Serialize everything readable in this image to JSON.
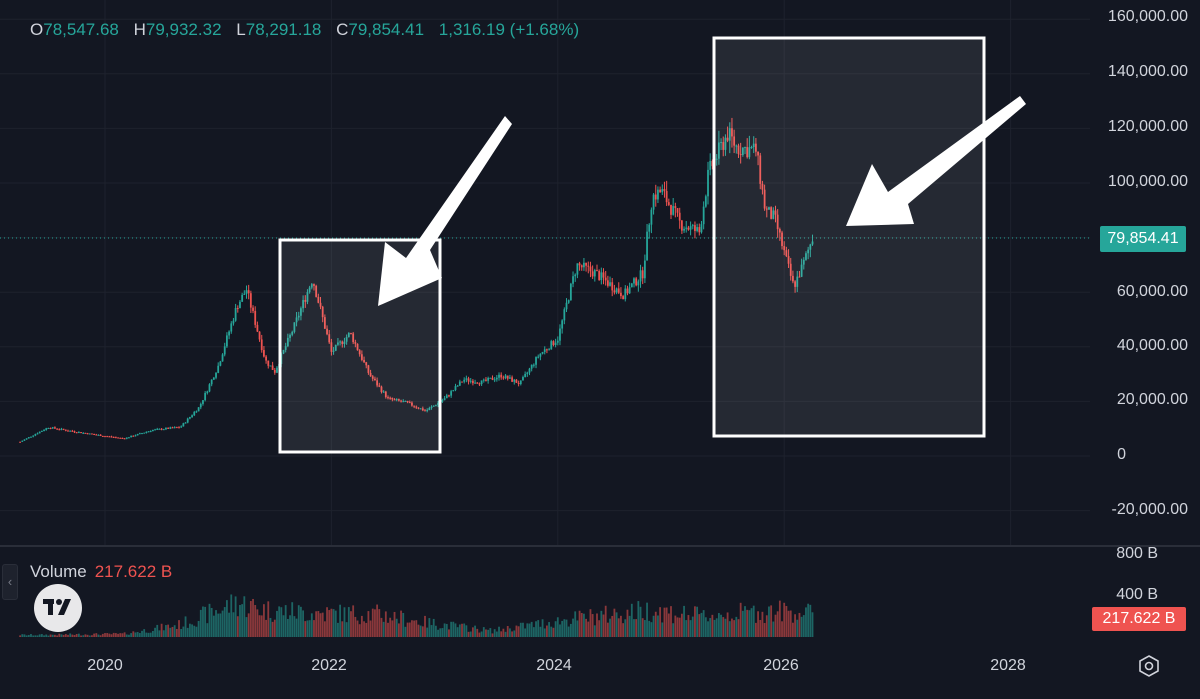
{
  "ohlc": {
    "o_key": "O",
    "o": "78,547.68",
    "h_key": "H",
    "h": "79,932.32",
    "l_key": "L",
    "l": "78,291.18",
    "c_key": "C",
    "c": "79,854.41",
    "change": "1,316.19 (+1.68%)"
  },
  "volume": {
    "label": "Volume",
    "value": "217.622 B"
  },
  "price_axis_labels": [
    "160,000.00",
    "140,000.00",
    "120,000.00",
    "100,000.00",
    "60,000.00",
    "40,000.00",
    "20,000.00",
    "0",
    "-20,000.00"
  ],
  "volume_axis_labels": [
    "800 B",
    "400 B"
  ],
  "x_axis_labels": [
    "2020",
    "2022",
    "2024",
    "2026",
    "2028"
  ],
  "last_price_tag": "79,854.41",
  "last_volume_tag": "217.622 B",
  "icons": {
    "collapse": "chevron-left-icon",
    "logo": "tradingview-logo",
    "settings": "settings-icon"
  },
  "colors": {
    "background": "#131722",
    "up": "#26a69a",
    "down": "#ef5350",
    "grid": "#1e222d",
    "text": "#d1d4dc"
  },
  "chart_data": {
    "type": "candlestick",
    "y_range": [
      -20000,
      160000
    ],
    "volume_range_billions": [
      0,
      800
    ],
    "x_range": [
      "2019-04",
      "2028-06"
    ],
    "last_price": 79854.41,
    "series": [
      {
        "name": "Price",
        "points": [
          [
            "2019-04",
            5200
          ],
          [
            "2019-07",
            10500
          ],
          [
            "2019-10",
            8800
          ],
          [
            "2020-01",
            7300
          ],
          [
            "2020-03",
            6400
          ],
          [
            "2020-06",
            9500
          ],
          [
            "2020-09",
            10600
          ],
          [
            "2020-11",
            18000
          ],
          [
            "2021-01",
            33000
          ],
          [
            "2021-03",
            55000
          ],
          [
            "2021-04",
            61000
          ],
          [
            "2021-06",
            35000
          ],
          [
            "2021-07",
            31000
          ],
          [
            "2021-09",
            47000
          ],
          [
            "2021-11",
            65000
          ],
          [
            "2022-01",
            38000
          ],
          [
            "2022-03",
            45000
          ],
          [
            "2022-05",
            30000
          ],
          [
            "2022-07",
            21000
          ],
          [
            "2022-09",
            19500
          ],
          [
            "2022-11",
            16500
          ],
          [
            "2023-01",
            21000
          ],
          [
            "2023-03",
            28000
          ],
          [
            "2023-05",
            27000
          ],
          [
            "2023-07",
            29500
          ],
          [
            "2023-09",
            26500
          ],
          [
            "2023-11",
            37000
          ],
          [
            "2024-01",
            43000
          ],
          [
            "2024-03",
            70000
          ],
          [
            "2024-05",
            67000
          ],
          [
            "2024-08",
            59000
          ],
          [
            "2024-10",
            67000
          ],
          [
            "2024-11",
            95000
          ],
          [
            "2024-12",
            97000
          ],
          [
            "2025-02",
            85000
          ],
          [
            "2025-04",
            82000
          ],
          [
            "2025-05",
            104000
          ],
          [
            "2025-07",
            118000
          ],
          [
            "2025-08",
            113000
          ],
          [
            "2025-10",
            112000
          ],
          [
            "2025-11",
            90000
          ],
          [
            "2025-12",
            87000
          ],
          [
            "2026-02",
            62000
          ],
          [
            "2026-03",
            70000
          ],
          [
            "2026-04",
            79854.41
          ]
        ]
      },
      {
        "name": "Volume",
        "points": [
          [
            "2019-06",
            20
          ],
          [
            "2020-03",
            30
          ],
          [
            "2020-09",
            120
          ],
          [
            "2021-03",
            330
          ],
          [
            "2021-06",
            260
          ],
          [
            "2021-11",
            230
          ],
          [
            "2022-06",
            220
          ],
          [
            "2022-11",
            140
          ],
          [
            "2023-06",
            60
          ],
          [
            "2024-03",
            180
          ],
          [
            "2024-11",
            260
          ],
          [
            "2025-04",
            200
          ],
          [
            "2025-10",
            240
          ],
          [
            "2026-02",
            250
          ],
          [
            "2026-04",
            217.622
          ]
        ]
      }
    ]
  }
}
